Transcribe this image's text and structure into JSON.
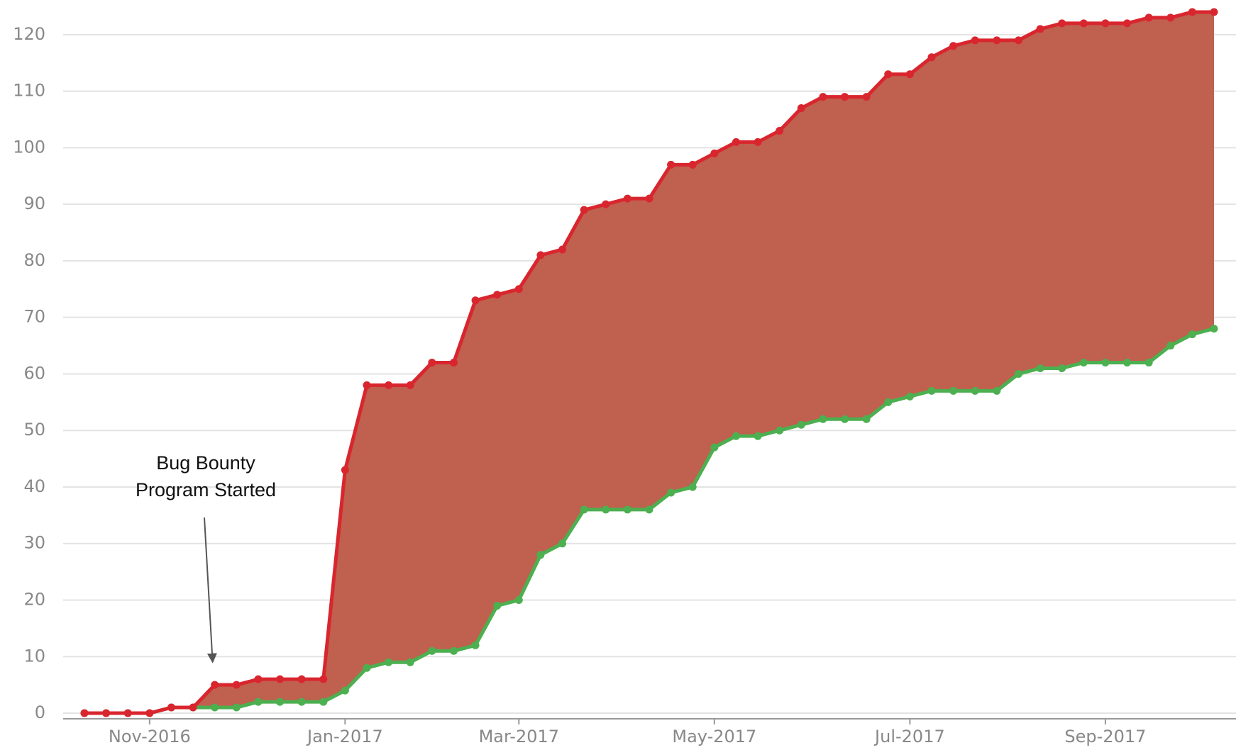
{
  "chart_data": {
    "type": "area-between",
    "categories": [
      null,
      null,
      null,
      "Nov-2016",
      null,
      null,
      null,
      null,
      null,
      null,
      null,
      null,
      "Jan-2017",
      null,
      null,
      null,
      null,
      null,
      null,
      null,
      "Mar-2017",
      null,
      null,
      null,
      null,
      null,
      null,
      null,
      null,
      "May-2017",
      null,
      null,
      null,
      null,
      null,
      null,
      null,
      null,
      "Jul-2017",
      null,
      null,
      null,
      null,
      null,
      null,
      null,
      null,
      "Sep-2017",
      null,
      null,
      null,
      null,
      null
    ],
    "series": [
      {
        "color": "#d9262e",
        "values": [
          0,
          0,
          0,
          0,
          1,
          1,
          5,
          5,
          6,
          6,
          6,
          6,
          43,
          58,
          58,
          58,
          62,
          62,
          73,
          74,
          75,
          81,
          82,
          89,
          90,
          91,
          91,
          97,
          97,
          99,
          101,
          101,
          103,
          107,
          109,
          109,
          109,
          113,
          113,
          116,
          118,
          119,
          119,
          119,
          121,
          122,
          122,
          122,
          122,
          123,
          123,
          124,
          124
        ]
      },
      {
        "color": "#4caf50",
        "values": [
          0,
          0,
          0,
          0,
          1,
          1,
          1,
          1,
          2,
          2,
          2,
          2,
          4,
          8,
          9,
          9,
          11,
          11,
          12,
          19,
          20,
          28,
          30,
          36,
          36,
          36,
          36,
          39,
          40,
          47,
          49,
          49,
          50,
          51,
          52,
          52,
          52,
          55,
          56,
          57,
          57,
          57,
          57,
          60,
          61,
          61,
          62,
          62,
          62,
          62,
          65,
          67,
          68
        ]
      }
    ],
    "fill_color": "#c0604f",
    "ylim": [
      -1,
      126
    ],
    "yticks": [
      0,
      10,
      20,
      30,
      40,
      50,
      60,
      70,
      80,
      90,
      100,
      110,
      120
    ],
    "grid": true,
    "annotation": {
      "lines": [
        "Bug Bounty",
        "Program Started"
      ],
      "x_index": 6,
      "y_value": 9
    }
  }
}
